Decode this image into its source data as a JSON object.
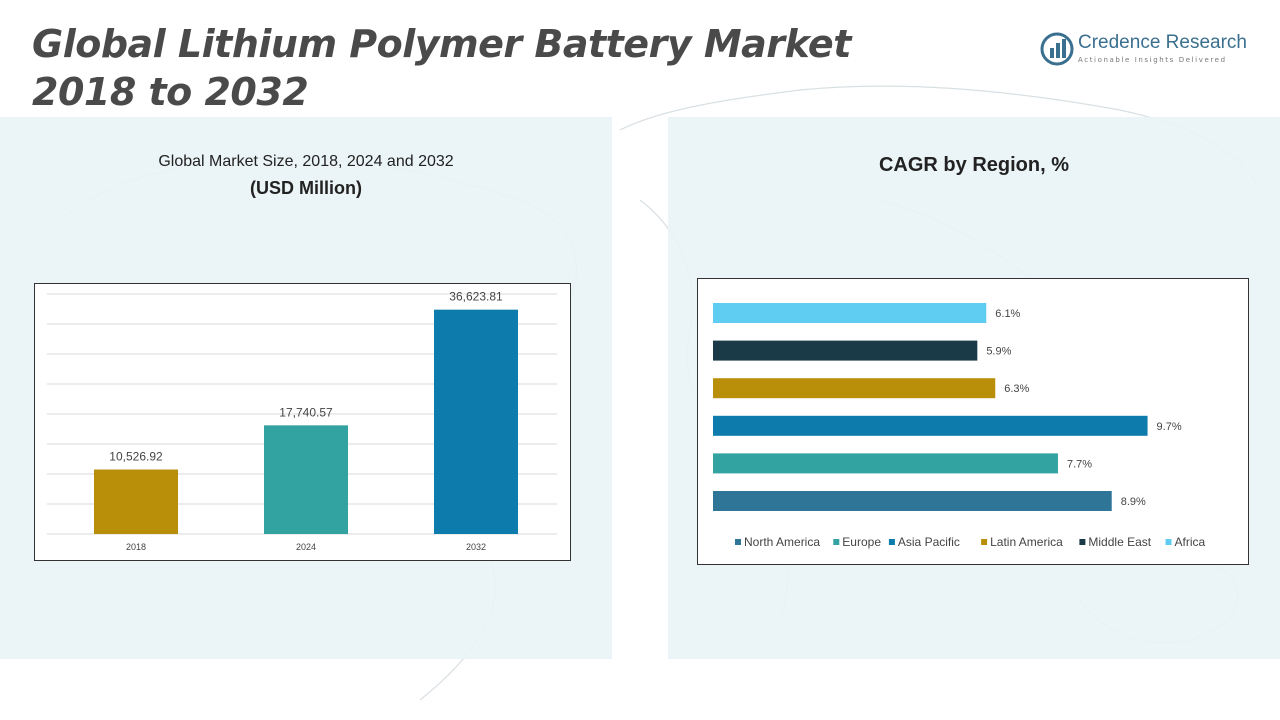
{
  "page": {
    "title_line1": "Global Lithium Polymer Battery Market",
    "title_line2": "2018 to 2032"
  },
  "logo": {
    "name": "Credence Research",
    "tagline": "Actionable Insights Delivered",
    "color": "#3a6f8f"
  },
  "left_panel": {
    "subtitle": "Global Market Size, 2018, 2024 and 2032",
    "unit": "(USD Million)"
  },
  "right_panel": {
    "title": "CAGR by Region, %"
  },
  "chart_data": [
    {
      "type": "bar",
      "categories": [
        "2018",
        "2024",
        "2032"
      ],
      "values": [
        10526.92,
        17740.57,
        36623.81
      ],
      "value_labels": [
        "10,526.92",
        "17,740.57",
        "36,623.81"
      ],
      "colors": [
        "#b98f0a",
        "#33a3a1",
        "#0d7bab"
      ],
      "ylim": [
        0,
        40000
      ],
      "grid": true
    },
    {
      "type": "bar",
      "orientation": "horizontal",
      "categories": [
        "Africa",
        "Middle East",
        "Latin America",
        "Asia Pacific",
        "Europe",
        "North America"
      ],
      "values": [
        6.1,
        5.9,
        6.3,
        9.7,
        7.7,
        8.9
      ],
      "value_labels": [
        "6.1%",
        "5.9%",
        "6.3%",
        "9.7%",
        "7.7%",
        "8.9%"
      ],
      "colors": [
        "#5fcdf1",
        "#1b3a48",
        "#b98f0a",
        "#0d7bab",
        "#33a3a1",
        "#2f7597"
      ],
      "xlim": [
        0,
        11
      ],
      "legend": {
        "position": "bottom",
        "entries": [
          {
            "label": "North America",
            "color": "#2f7597"
          },
          {
            "label": "Europe",
            "color": "#33a3a1"
          },
          {
            "label": "Asia Pacific",
            "color": "#0d7bab"
          },
          {
            "label": "Latin America",
            "color": "#b98f0a"
          },
          {
            "label": "Middle East",
            "color": "#1b3a48"
          },
          {
            "label": "Africa",
            "color": "#5fcdf1"
          }
        ]
      }
    }
  ]
}
